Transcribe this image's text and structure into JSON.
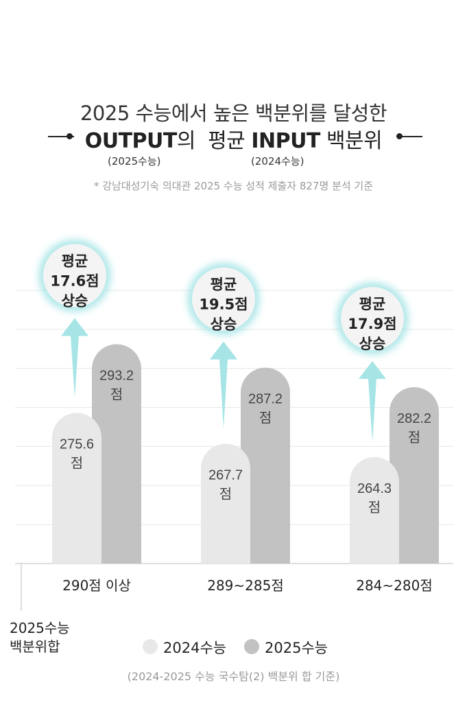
{
  "header": {
    "title_line1": "2025 수능에서 높은 백분위를 달성한",
    "output_bold": "OUTPUT",
    "output_suffix": "의",
    "input_prefix": "평균",
    "input_bold": "INPUT",
    "input_suffix": "백분위",
    "output_sub": "(2025수능)",
    "input_sub": "(2024수능)",
    "note": "* 강남대성기숙 의대관 2025 수능 성적 제출자 827명 분석 기준"
  },
  "chart_data": {
    "type": "bar",
    "categories": [
      "290점 이상",
      "289~285점",
      "284~280점"
    ],
    "series": [
      {
        "name": "2024수능",
        "values": [
          275.6,
          267.7,
          264.3
        ],
        "color": "#e8e8e8"
      },
      {
        "name": "2025수능",
        "values": [
          293.2,
          287.2,
          282.2
        ],
        "color": "#c2c2c2"
      }
    ],
    "value_unit": "점",
    "increase_labels": [
      {
        "line1": "평균",
        "line2": "17.6점",
        "line3": "상승"
      },
      {
        "line1": "평균",
        "line2": "19.5점",
        "line3": "상승"
      },
      {
        "line1": "평균",
        "line2": "17.9점",
        "line3": "상승"
      }
    ],
    "ylabel": "2025수능 백분위합",
    "ylabel_lines": [
      "2025수능",
      "백분위합"
    ],
    "ylim": [
      237,
      307
    ],
    "grid": true,
    "legend": "bottom-center",
    "accent_color": "#a6e4e6"
  },
  "footer": "(2024-2025 수능 국수탐(2) 백분위 합 기준)"
}
